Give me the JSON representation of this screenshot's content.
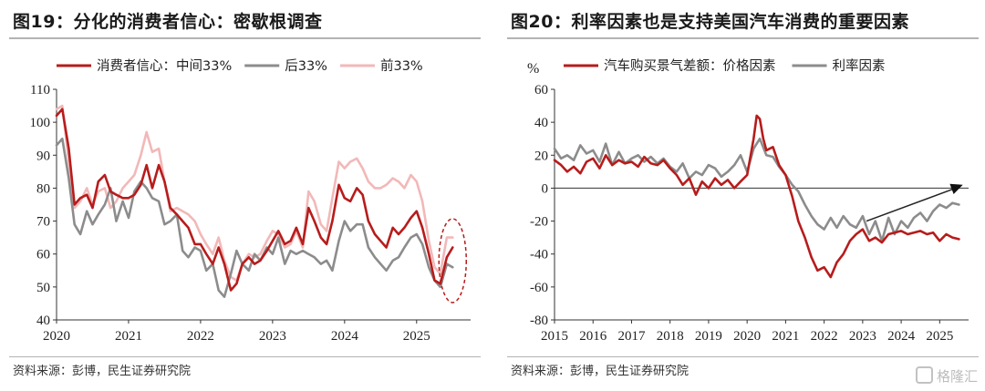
{
  "panels": {
    "left": {
      "title": "图19：分化的消费者信心：密歇根调查",
      "source": "资料来源：彭博，民生证券研究院"
    },
    "right": {
      "title": "图20：利率因素也是支持美国汽车消费的重要因素",
      "source": "资料来源：彭博，民生证券研究院"
    }
  },
  "watermark": "格隆汇",
  "chart_data": [
    {
      "type": "line",
      "title": "",
      "xlabel": "",
      "ylabel": "",
      "ylim": [
        40,
        110
      ],
      "yticks": [
        40,
        50,
        60,
        70,
        80,
        90,
        100,
        110
      ],
      "xlim": [
        2020,
        2025.75
      ],
      "xticks": [
        "2020",
        "2021",
        "2022",
        "2023",
        "2024",
        "2025"
      ],
      "legend_position": "top",
      "grid": false,
      "annotation": "red dashed ellipse around most recent values",
      "series": [
        {
          "name": "消费者信心：中间33%",
          "color": "#b71c1c",
          "x": [
            2020.0,
            2020.08,
            2020.17,
            2020.25,
            2020.33,
            2020.42,
            2020.5,
            2020.58,
            2020.67,
            2020.75,
            2020.83,
            2020.92,
            2021.0,
            2021.08,
            2021.17,
            2021.25,
            2021.33,
            2021.42,
            2021.5,
            2021.58,
            2021.67,
            2021.75,
            2021.83,
            2021.92,
            2022.0,
            2022.08,
            2022.17,
            2022.25,
            2022.33,
            2022.42,
            2022.5,
            2022.58,
            2022.67,
            2022.75,
            2022.83,
            2022.92,
            2023.0,
            2023.08,
            2023.17,
            2023.25,
            2023.33,
            2023.42,
            2023.5,
            2023.58,
            2023.67,
            2023.75,
            2023.83,
            2023.92,
            2024.0,
            2024.08,
            2024.17,
            2024.25,
            2024.33,
            2024.42,
            2024.5,
            2024.58,
            2024.67,
            2024.75,
            2024.83,
            2024.92,
            2025.0,
            2025.08,
            2025.17,
            2025.25,
            2025.33,
            2025.42,
            2025.5
          ],
          "values": [
            102,
            104,
            92,
            75,
            77,
            78,
            74,
            82,
            84,
            79,
            78,
            77,
            77,
            78,
            81,
            87,
            80,
            87,
            82,
            74,
            72,
            70,
            68,
            63,
            63,
            60,
            57,
            62,
            57,
            49,
            51,
            57,
            59,
            57,
            58,
            61,
            64,
            67,
            63,
            64,
            68,
            63,
            74,
            70,
            65,
            63,
            70,
            81,
            77,
            76,
            80,
            78,
            70,
            66,
            64,
            62,
            68,
            66,
            68,
            71,
            73,
            68,
            60,
            52,
            51,
            59,
            62
          ]
        },
        {
          "name": "后33%",
          "color": "#8c8c8c",
          "x": [
            2020.0,
            2020.08,
            2020.17,
            2020.25,
            2020.33,
            2020.42,
            2020.5,
            2020.58,
            2020.67,
            2020.75,
            2020.83,
            2020.92,
            2021.0,
            2021.08,
            2021.17,
            2021.25,
            2021.33,
            2021.42,
            2021.5,
            2021.58,
            2021.67,
            2021.75,
            2021.83,
            2021.92,
            2022.0,
            2022.08,
            2022.17,
            2022.25,
            2022.33,
            2022.42,
            2022.5,
            2022.58,
            2022.67,
            2022.75,
            2022.83,
            2022.92,
            2023.0,
            2023.08,
            2023.17,
            2023.25,
            2023.33,
            2023.42,
            2023.5,
            2023.58,
            2023.67,
            2023.75,
            2023.83,
            2023.92,
            2024.0,
            2024.08,
            2024.17,
            2024.25,
            2024.33,
            2024.42,
            2024.5,
            2024.58,
            2024.67,
            2024.75,
            2024.83,
            2024.92,
            2025.0,
            2025.08,
            2025.17,
            2025.25,
            2025.33,
            2025.42,
            2025.5
          ],
          "values": [
            93,
            95,
            83,
            69,
            66,
            73,
            69,
            72,
            75,
            80,
            70,
            76,
            71,
            79,
            82,
            80,
            77,
            76,
            69,
            70,
            72,
            61,
            59,
            62,
            61,
            55,
            57,
            49,
            47,
            54,
            61,
            57,
            55,
            60,
            58,
            62,
            60,
            65,
            57,
            61,
            60,
            61,
            60,
            59,
            57,
            58,
            55,
            64,
            70,
            67,
            69,
            69,
            62,
            59,
            57,
            55,
            58,
            59,
            62,
            65,
            66,
            63,
            56,
            52,
            50,
            57,
            56
          ]
        },
        {
          "name": "前33%",
          "color": "#f2b8b8",
          "x": [
            2020.0,
            2020.08,
            2020.17,
            2020.25,
            2020.33,
            2020.42,
            2020.5,
            2020.58,
            2020.67,
            2020.75,
            2020.83,
            2020.92,
            2021.0,
            2021.08,
            2021.17,
            2021.25,
            2021.33,
            2021.42,
            2021.5,
            2021.58,
            2021.67,
            2021.75,
            2021.83,
            2021.92,
            2022.0,
            2022.08,
            2022.17,
            2022.25,
            2022.33,
            2022.42,
            2022.5,
            2022.58,
            2022.67,
            2022.75,
            2022.83,
            2022.92,
            2023.0,
            2023.08,
            2023.17,
            2023.25,
            2023.33,
            2023.42,
            2023.5,
            2023.58,
            2023.67,
            2023.75,
            2023.83,
            2023.92,
            2024.0,
            2024.08,
            2024.17,
            2024.25,
            2024.33,
            2024.42,
            2024.5,
            2024.58,
            2024.67,
            2024.75,
            2024.83,
            2024.92,
            2025.0,
            2025.08,
            2025.17,
            2025.25,
            2025.33,
            2025.42,
            2025.5
          ],
          "values": [
            104,
            105,
            88,
            74,
            76,
            80,
            75,
            79,
            80,
            74,
            76,
            80,
            82,
            84,
            90,
            97,
            91,
            92,
            82,
            73,
            74,
            73,
            72,
            70,
            66,
            63,
            60,
            65,
            58,
            53,
            52,
            57,
            60,
            59,
            60,
            64,
            67,
            66,
            62,
            63,
            67,
            62,
            79,
            76,
            69,
            67,
            77,
            88,
            86,
            88,
            89,
            86,
            82,
            80,
            80,
            81,
            83,
            82,
            80,
            84,
            82,
            76,
            64,
            56,
            54,
            65,
            65
          ]
        }
      ]
    },
    {
      "type": "line",
      "title": "",
      "xlabel": "",
      "ylabel": "%",
      "ylim": [
        -80,
        60
      ],
      "yticks": [
        -80,
        -60,
        -40,
        -20,
        0,
        20,
        40,
        60
      ],
      "xlim": [
        2015,
        2025.75
      ],
      "xticks": [
        "2015",
        "2016",
        "2017",
        "2018",
        "2019",
        "2020",
        "2021",
        "2022",
        "2023",
        "2024",
        "2025"
      ],
      "legend_position": "top",
      "grid": false,
      "annotation": "black arrow from about 2023 pointing up-right to 2025.5",
      "series": [
        {
          "name": "汽车购买景气差额：价格因素",
          "color": "#b71c1c",
          "x": [
            2015.0,
            2015.17,
            2015.33,
            2015.5,
            2015.67,
            2015.83,
            2016.0,
            2016.17,
            2016.33,
            2016.5,
            2016.67,
            2016.83,
            2017.0,
            2017.17,
            2017.33,
            2017.5,
            2017.67,
            2017.83,
            2018.0,
            2018.17,
            2018.33,
            2018.5,
            2018.67,
            2018.83,
            2019.0,
            2019.17,
            2019.33,
            2019.5,
            2019.67,
            2019.83,
            2020.0,
            2020.17,
            2020.25,
            2020.33,
            2020.42,
            2020.5,
            2020.67,
            2020.83,
            2021.0,
            2021.17,
            2021.33,
            2021.5,
            2021.67,
            2021.83,
            2022.0,
            2022.17,
            2022.33,
            2022.5,
            2022.67,
            2022.83,
            2023.0,
            2023.17,
            2023.33,
            2023.5,
            2023.67,
            2023.83,
            2024.0,
            2024.17,
            2024.33,
            2024.5,
            2024.67,
            2024.83,
            2025.0,
            2025.17,
            2025.33,
            2025.5
          ],
          "values": [
            17,
            14,
            10,
            13,
            9,
            16,
            18,
            12,
            20,
            14,
            17,
            15,
            16,
            13,
            19,
            15,
            14,
            17,
            12,
            8,
            2,
            6,
            -4,
            4,
            0,
            6,
            2,
            5,
            0,
            4,
            8,
            30,
            44,
            42,
            30,
            23,
            25,
            14,
            8,
            -5,
            -20,
            -30,
            -42,
            -50,
            -48,
            -54,
            -45,
            -40,
            -32,
            -28,
            -25,
            -32,
            -30,
            -33,
            -28,
            -27,
            -26,
            -28,
            -27,
            -26,
            -28,
            -27,
            -32,
            -28,
            -30,
            -31
          ]
        },
        {
          "name": "利率因素",
          "color": "#8c8c8c",
          "x": [
            2015.0,
            2015.17,
            2015.33,
            2015.5,
            2015.67,
            2015.83,
            2016.0,
            2016.17,
            2016.33,
            2016.5,
            2016.67,
            2016.83,
            2017.0,
            2017.17,
            2017.33,
            2017.5,
            2017.67,
            2017.83,
            2018.0,
            2018.17,
            2018.33,
            2018.5,
            2018.67,
            2018.83,
            2019.0,
            2019.17,
            2019.33,
            2019.5,
            2019.67,
            2019.83,
            2020.0,
            2020.17,
            2020.33,
            2020.5,
            2020.67,
            2020.83,
            2021.0,
            2021.17,
            2021.33,
            2021.5,
            2021.67,
            2021.83,
            2022.0,
            2022.17,
            2022.33,
            2022.5,
            2022.67,
            2022.83,
            2023.0,
            2023.17,
            2023.33,
            2023.5,
            2023.67,
            2023.83,
            2024.0,
            2024.17,
            2024.33,
            2024.5,
            2024.67,
            2024.83,
            2025.0,
            2025.17,
            2025.33,
            2025.5
          ],
          "values": [
            24,
            18,
            20,
            17,
            26,
            21,
            23,
            16,
            27,
            14,
            22,
            15,
            18,
            20,
            16,
            19,
            15,
            18,
            13,
            10,
            15,
            6,
            10,
            8,
            14,
            12,
            7,
            10,
            14,
            20,
            10,
            24,
            30,
            20,
            19,
            13,
            8,
            2,
            -2,
            -10,
            -17,
            -22,
            -25,
            -18,
            -24,
            -17,
            -22,
            -24,
            -17,
            -28,
            -20,
            -32,
            -18,
            -28,
            -20,
            -24,
            -18,
            -15,
            -20,
            -14,
            -10,
            -12,
            -9,
            -10
          ]
        }
      ]
    }
  ]
}
